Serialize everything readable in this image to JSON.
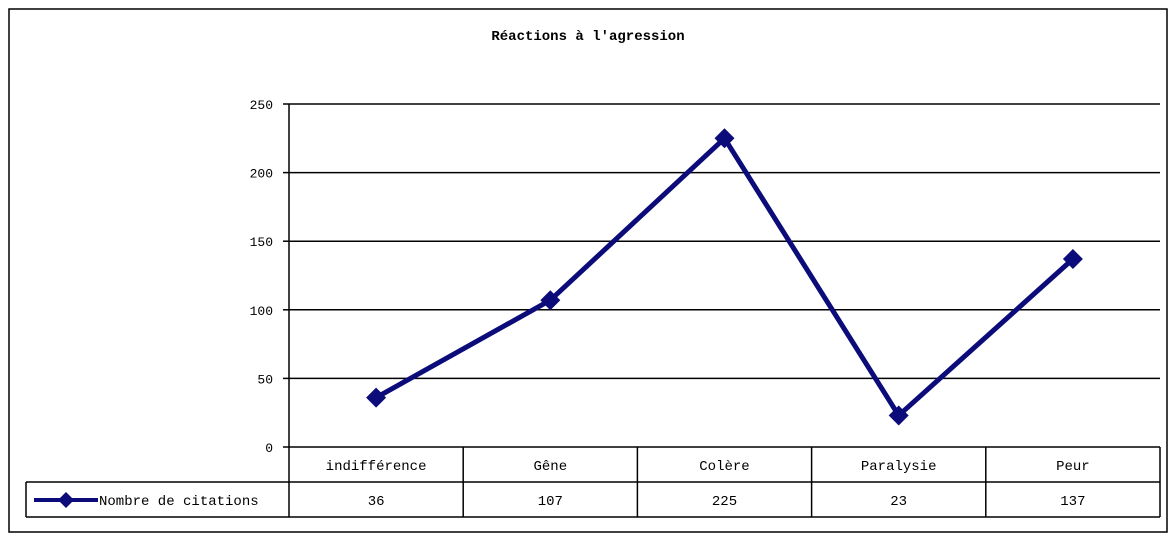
{
  "chart_data": {
    "type": "line",
    "title": "Réactions à l'agression",
    "categories": [
      "indifférence",
      "Gêne",
      "Colère",
      "Paralysie",
      "Peur"
    ],
    "series": [
      {
        "name": "Nombre de citations",
        "values": [
          36,
          107,
          225,
          23,
          137
        ],
        "color": "#0b0b7a"
      }
    ],
    "ylim": [
      0,
      250
    ],
    "yticks": [
      "0",
      "50",
      "100",
      "150",
      "200",
      "250"
    ],
    "grid": true,
    "legend": "data-table",
    "data_table_values": [
      "36",
      "107",
      "225",
      "23",
      "137"
    ],
    "marker": "diamond"
  }
}
